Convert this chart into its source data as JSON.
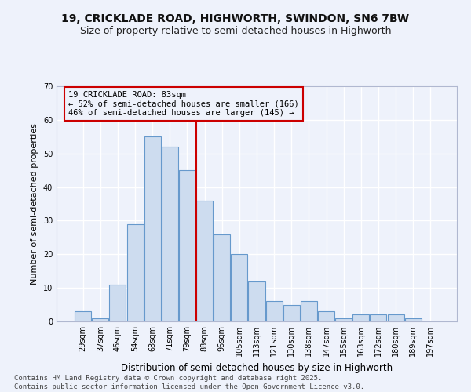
{
  "title1": "19, CRICKLADE ROAD, HIGHWORTH, SWINDON, SN6 7BW",
  "title2": "Size of property relative to semi-detached houses in Highworth",
  "xlabel": "Distribution of semi-detached houses by size in Highworth",
  "ylabel": "Number of semi-detached properties",
  "categories": [
    "29sqm",
    "37sqm",
    "46sqm",
    "54sqm",
    "63sqm",
    "71sqm",
    "79sqm",
    "88sqm",
    "96sqm",
    "105sqm",
    "113sqm",
    "121sqm",
    "130sqm",
    "138sqm",
    "147sqm",
    "155sqm",
    "163sqm",
    "172sqm",
    "180sqm",
    "189sqm",
    "197sqm"
  ],
  "values": [
    3,
    1,
    11,
    29,
    55,
    52,
    45,
    36,
    26,
    20,
    12,
    6,
    5,
    6,
    3,
    1,
    2,
    2,
    2,
    1,
    0
  ],
  "bar_color": "#cddcef",
  "bar_edge_color": "#6699cc",
  "vline_color": "#cc0000",
  "annotation_box_color": "#cc0000",
  "annotation_line1": "19 CRICKLADE ROAD: 83sqm",
  "annotation_line2": "← 52% of semi-detached houses are smaller (166)",
  "annotation_line3": "46% of semi-detached houses are larger (145) →",
  "background_color": "#eef2fb",
  "grid_color": "#ffffff",
  "ylim": [
    0,
    70
  ],
  "yticks": [
    0,
    10,
    20,
    30,
    40,
    50,
    60,
    70
  ],
  "footer1": "Contains HM Land Registry data © Crown copyright and database right 2025.",
  "footer2": "Contains public sector information licensed under the Open Government Licence v3.0.",
  "title1_fontsize": 10,
  "title2_fontsize": 9,
  "xlabel_fontsize": 8.5,
  "ylabel_fontsize": 8,
  "tick_fontsize": 7,
  "annotation_fontsize": 7.5,
  "footer_fontsize": 6.5
}
